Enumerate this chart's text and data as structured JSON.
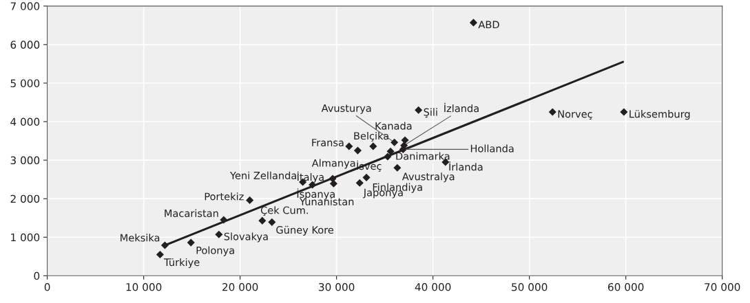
{
  "chart_data": {
    "type": "scatter",
    "series": [
      {
        "marker": "diamond",
        "color": "#231f20",
        "x": [
          11700,
          12200,
          14900,
          17800,
          18300,
          22300,
          23300,
          21000,
          26500,
          27500,
          29700,
          29600,
          31300,
          32200,
          33800,
          32400,
          33100,
          35300,
          35600,
          36300,
          36000,
          37100,
          37000,
          36900,
          38500,
          41300,
          52400,
          59800,
          44200
        ],
        "values": [
          550,
          790,
          860,
          1070,
          1450,
          1430,
          1390,
          1960,
          2430,
          2360,
          2390,
          2520,
          3360,
          3250,
          3360,
          2410,
          2550,
          3090,
          3230,
          2800,
          3460,
          3520,
          3380,
          3280,
          4300,
          2950,
          4250,
          4250,
          6570
        ]
      },
      {
        "type": "line",
        "color": "#231f20",
        "x": [
          12200,
          59700
        ],
        "values": [
          790,
          5550
        ]
      }
    ],
    "xlim": [
      0,
      70000
    ],
    "xticks": [
      0,
      {
        "value": 10000,
        "label": "10 000"
      },
      {
        "value": 20000,
        "label": "20 000"
      },
      {
        "value": 30000,
        "label": "30 000"
      },
      {
        "value": 40000,
        "label": "40 000"
      },
      {
        "value": 50000,
        "label": "50 000"
      },
      {
        "value": 60000,
        "label": "60 000"
      },
      {
        "value": 70000,
        "label": "70 000"
      }
    ],
    "ylim": [
      0,
      7000
    ],
    "yticks": [
      0,
      {
        "value": 1000,
        "label": "1 000"
      },
      {
        "value": 2000,
        "label": "2 000"
      },
      {
        "value": 3000,
        "label": "3 000"
      },
      {
        "value": 4000,
        "label": "4 000"
      },
      {
        "value": 5000,
        "label": "5 000"
      },
      {
        "value": 6000,
        "label": "6 000"
      },
      {
        "value": 7000,
        "label": "7 000"
      }
    ],
    "grid": true,
    "annotations": [
      {
        "text": "Türkiye",
        "x": 11700,
        "y": 550
      },
      {
        "text": "Meksika",
        "x": 12200,
        "y": 790
      },
      {
        "text": "Polonya",
        "x": 14900,
        "y": 860
      },
      {
        "text": "Slovakya",
        "x": 17800,
        "y": 1070
      },
      {
        "text": "Macaristan",
        "x": 18300,
        "y": 1450
      },
      {
        "text": "Çek Cum.",
        "x": 22300,
        "y": 1430
      },
      {
        "text": "Güney Kore",
        "x": 23300,
        "y": 1390
      },
      {
        "text": "Portekiz",
        "x": 21000,
        "y": 1960
      },
      {
        "text": "Yeni Zellanda",
        "x": 26500,
        "y": 2430
      },
      {
        "text": "İtalya",
        "x": 27500,
        "y": 2360
      },
      {
        "text": "İspanya",
        "x": 29700,
        "y": 2390
      },
      {
        "text": "Yunanistan",
        "x": 29600,
        "y": 2520
      },
      {
        "text": "Fransa",
        "x": 31300,
        "y": 3360
      },
      {
        "text": "Almanya",
        "x": 32200,
        "y": 3250
      },
      {
        "text": "Belçika",
        "x": 33800,
        "y": 3360
      },
      {
        "text": "Japonya",
        "x": 32400,
        "y": 2410
      },
      {
        "text": "Finlandiya",
        "x": 33100,
        "y": 2550
      },
      {
        "text": "İsveç",
        "x": 35300,
        "y": 3090
      },
      {
        "text": "Danimarka",
        "x": 35600,
        "y": 3230
      },
      {
        "text": "Avustralya",
        "x": 36300,
        "y": 2800
      },
      {
        "text": "Avusturya",
        "x": 36000,
        "y": 3460
      },
      {
        "text": "Kanada",
        "x": 37100,
        "y": 3520
      },
      {
        "text": "İzlanda",
        "x": 37000,
        "y": 3380
      },
      {
        "text": "Hollanda",
        "x": 36900,
        "y": 3280
      },
      {
        "text": "Şili",
        "x": 38500,
        "y": 4300
      },
      {
        "text": "İrlanda",
        "x": 41300,
        "y": 2950
      },
      {
        "text": "Norveç",
        "x": 52400,
        "y": 4250
      },
      {
        "text": "Lüksemburg",
        "x": 59800,
        "y": 4250
      },
      {
        "text": "ABD",
        "x": 44200,
        "y": 6570
      }
    ]
  }
}
